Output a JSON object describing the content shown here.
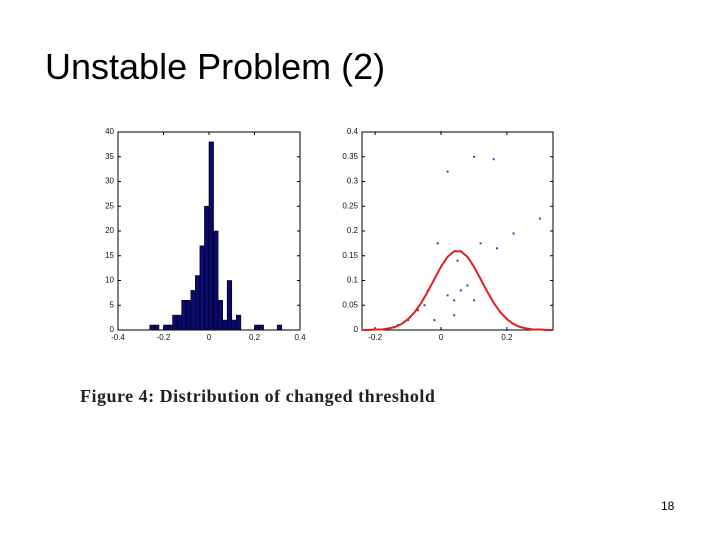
{
  "title": "Unstable Problem (2)",
  "caption": "Figure 4: Distribution of changed threshold",
  "page_number": "18",
  "chart_data": [
    {
      "type": "histogram",
      "color": "#0a0a6e",
      "bins": [
        -0.26,
        -0.24,
        -0.22,
        -0.2,
        -0.18,
        -0.16,
        -0.14,
        -0.12,
        -0.1,
        -0.08,
        -0.06,
        -0.04,
        -0.02,
        0,
        0.02,
        0.04,
        0.06,
        0.08,
        0.1,
        0.12,
        0.14,
        0.16,
        0.18,
        0.2,
        0.22,
        0.24,
        0.26,
        0.28,
        0.3,
        0.32
      ],
      "values": [
        1,
        1,
        0,
        1,
        1,
        3,
        3,
        6,
        6,
        8,
        11,
        17,
        25,
        38,
        20,
        6,
        2,
        10,
        2,
        3,
        0,
        0,
        0,
        1,
        1,
        0,
        0,
        0,
        1
      ],
      "xlim": [
        -0.4,
        0.4
      ],
      "xticks": [
        -0.4,
        -0.2,
        0,
        0.2,
        0.4
      ],
      "ylim": [
        0,
        40
      ],
      "yticks": [
        0,
        5,
        10,
        15,
        20,
        25,
        30,
        35,
        40
      ]
    },
    {
      "type": "line",
      "series": [
        {
          "style": "points",
          "color": "#3a3ac0",
          "x": [
            0,
            0.1,
            0.02,
            0.16,
            0.3,
            0.22,
            -0.01,
            0.12,
            0.17,
            0.05,
            -0.04,
            0.02,
            0.06,
            0.08,
            0.1,
            -0.05,
            -0.07,
            -0.1,
            -0.02,
            0.04,
            -0.13,
            0.04,
            0.2
          ],
          "values": [
            0.4,
            0.35,
            0.32,
            0.345,
            0.225,
            0.195,
            0.175,
            0.175,
            0.165,
            0.14,
            0.08,
            0.07,
            0.08,
            0.09,
            0.06,
            0.05,
            0.04,
            0.02,
            0.02,
            0.03,
            0.01,
            0.06,
            0
          ]
        },
        {
          "style": "line",
          "color": "#e02020",
          "x": [
            -0.24,
            -0.22,
            -0.2,
            -0.18,
            -0.16,
            -0.14,
            -0.12,
            -0.1,
            -0.08,
            -0.06,
            -0.04,
            -0.02,
            0,
            0.02,
            0.04,
            0.06,
            0.08,
            0.1,
            0.12,
            0.14,
            0.16,
            0.18,
            0.2,
            0.22,
            0.24,
            0.26,
            0.28,
            0.3,
            0.32,
            0.34
          ],
          "values": [
            0,
            0,
            0.001,
            0.001,
            0.003,
            0.006,
            0.012,
            0.022,
            0.036,
            0.055,
            0.078,
            0.103,
            0.128,
            0.148,
            0.159,
            0.159,
            0.148,
            0.128,
            0.103,
            0.078,
            0.055,
            0.036,
            0.022,
            0.012,
            0.006,
            0.003,
            0.001,
            0.001,
            0,
            0
          ]
        }
      ],
      "xlim": [
        -0.24,
        0.34
      ],
      "xticks": [
        -0.2,
        0,
        0.2
      ],
      "ylim": [
        0,
        0.4
      ],
      "yticks": [
        0,
        0.05,
        0.1,
        0.15,
        0.2,
        0.25,
        0.3,
        0.35,
        0.4
      ]
    }
  ]
}
